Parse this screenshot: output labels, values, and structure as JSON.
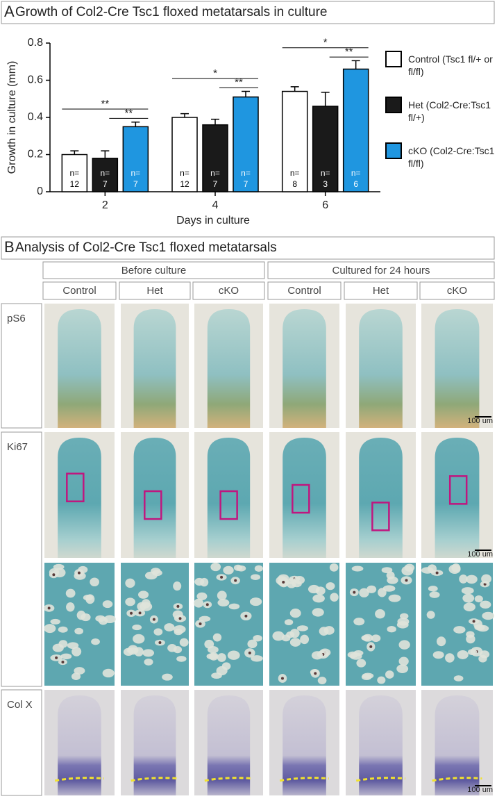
{
  "chart_data": {
    "type": "bar",
    "panel_label": "A",
    "title": "Growth of Col2-Cre Tsc1 floxed metatarsals in culture",
    "x_label": "Days in culture",
    "y_label": "Growth in culture (mm)",
    "categories": [
      "2",
      "4",
      "6"
    ],
    "series": [
      {
        "name": "Control (Tsc1 fl/+ or fl/fl)",
        "color": "#ffffff",
        "text_color": "#000000",
        "values": [
          0.2,
          0.4,
          0.54
        ],
        "errors": [
          0.02,
          0.02,
          0.025
        ],
        "n": [
          12,
          12,
          8
        ]
      },
      {
        "name": "Het (Col2-Cre:Tsc1 fl/+)",
        "color": "#1a1a1a",
        "text_color": "#ffffff",
        "values": [
          0.18,
          0.36,
          0.46
        ],
        "errors": [
          0.04,
          0.03,
          0.075
        ],
        "n": [
          7,
          7,
          3
        ]
      },
      {
        "name": "cKO (Col2-Cre:Tsc1 fl/fl)",
        "color": "#1f96e0",
        "text_color": "#ffffff",
        "values": [
          0.35,
          0.51,
          0.66
        ],
        "errors": [
          0.025,
          0.03,
          0.045
        ],
        "n": [
          7,
          7,
          6
        ]
      }
    ],
    "n_label": "n=",
    "annotations": [
      {
        "text": "**",
        "category": 0,
        "from": 0,
        "to": 2
      },
      {
        "text": "**",
        "category": 0,
        "from": 1,
        "to": 2
      },
      {
        "text": "*",
        "category": 1,
        "from": 0,
        "to": 2
      },
      {
        "text": "**",
        "category": 1,
        "from": 1,
        "to": 2
      },
      {
        "text": "*",
        "category": 2,
        "from": 0,
        "to": 2
      },
      {
        "text": "**",
        "category": 2,
        "from": 1,
        "to": 2
      }
    ],
    "ylim": [
      0,
      0.8
    ],
    "yticks": [
      0,
      0.2,
      0.4,
      0.6,
      0.8
    ]
  },
  "panel_b": {
    "panel_label": "B",
    "title": "Analysis of Col2-Cre Tsc1 floxed metatarsals",
    "groups": [
      {
        "label": "Before culture",
        "columns": [
          "Control",
          "Het",
          "cKO"
        ]
      },
      {
        "label": "Cultured for 24 hours",
        "columns": [
          "Control",
          "Het",
          "cKO"
        ]
      }
    ],
    "rows": [
      "pS6",
      "Ki67",
      "Col X"
    ],
    "scale_bar": "100 um"
  }
}
